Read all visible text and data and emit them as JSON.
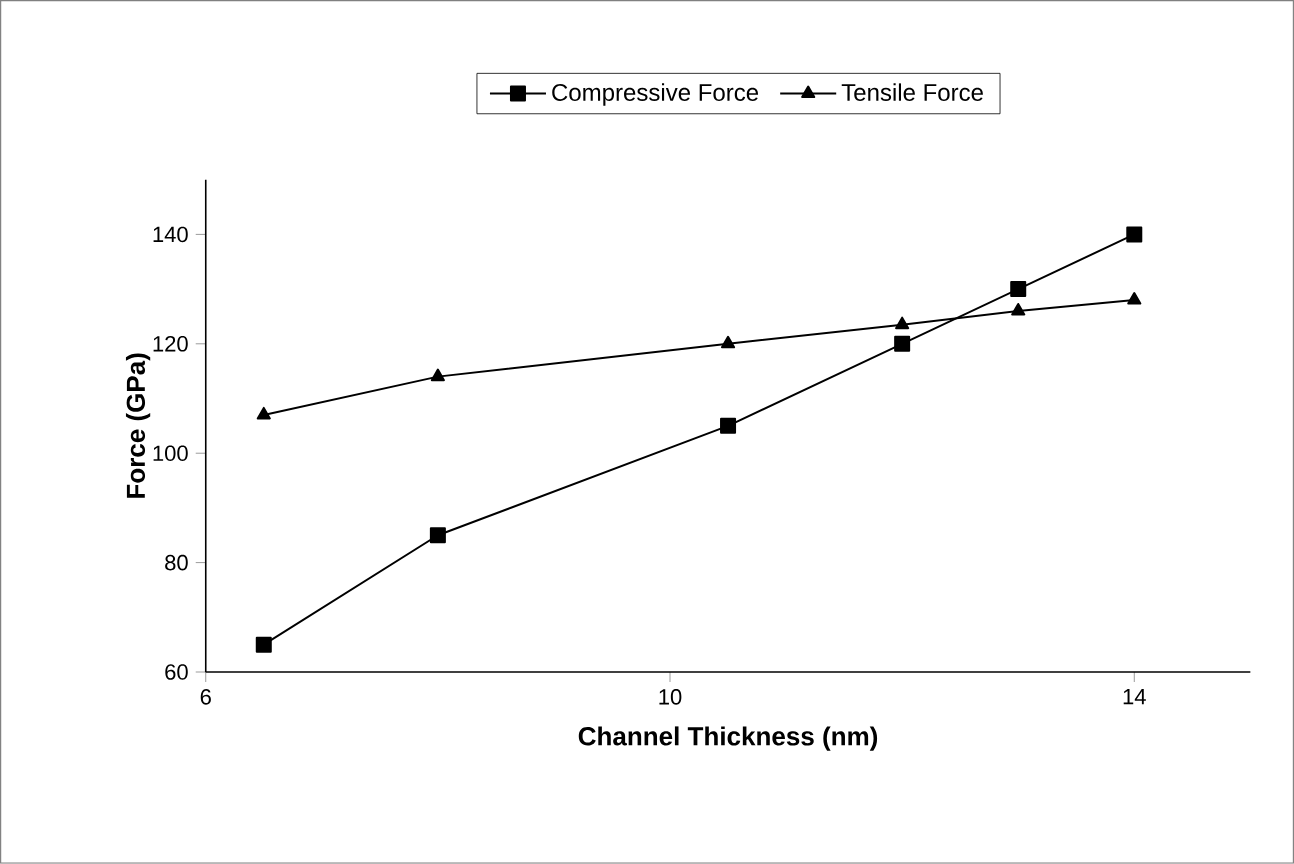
{
  "chart_data": {
    "type": "line",
    "xlabel": "Channel Thickness (nm)",
    "ylabel": "Force (GPa)",
    "x": [
      6.5,
      8,
      10.5,
      12,
      13,
      14
    ],
    "series": [
      {
        "name": "Compressive Force",
        "color": "#000000",
        "marker": "square",
        "values": [
          65,
          85,
          105,
          120,
          130,
          140
        ]
      },
      {
        "name": "Tensile Force",
        "color": "#000000",
        "marker": "triangle",
        "values": [
          107,
          114,
          120,
          123.5,
          126,
          128
        ]
      }
    ],
    "xlim": [
      6,
      15
    ],
    "ylim": [
      60,
      150
    ],
    "xticks": [
      6,
      10,
      14
    ],
    "yticks": [
      60,
      80,
      100,
      120,
      140
    ],
    "legend": "top",
    "line_style": "solid"
  }
}
